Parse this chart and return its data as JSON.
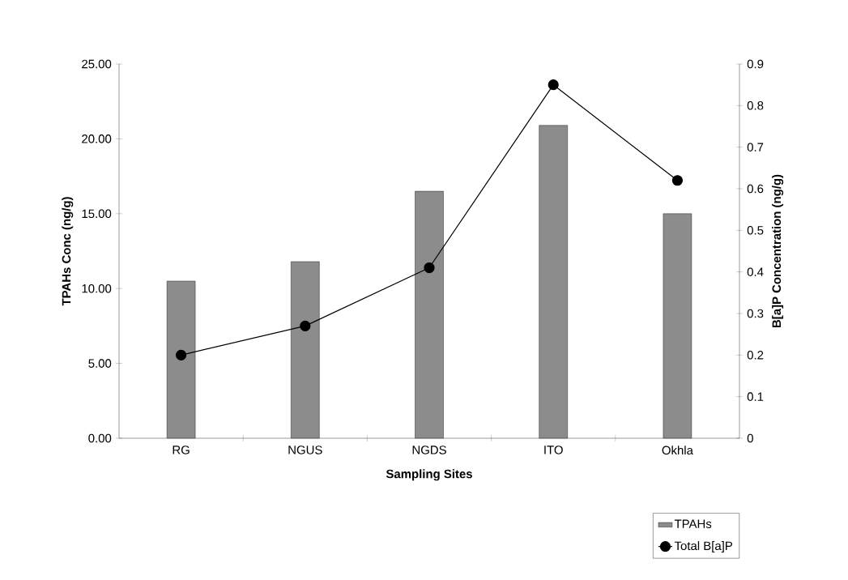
{
  "chart_data": {
    "type": "bar",
    "xlabel": "Sampling Sites",
    "ylabel": "TPAHs Conc (ng/g)",
    "y2label": "B[a]P Concentration (ng/g)",
    "categories": [
      "RG",
      "NGUS",
      "NGDS",
      "ITO",
      "Okhla"
    ],
    "series": [
      {
        "name": "TPAHs",
        "color": "#8c8c8c",
        "values": [
          10.5,
          11.8,
          16.5,
          20.9,
          15.0
        ]
      },
      {
        "name": "Total B[a]P",
        "type": "line",
        "axis": "y2",
        "color": "#000000",
        "values": [
          0.2,
          0.27,
          0.41,
          0.85,
          0.62
        ]
      }
    ],
    "ylim": [
      0,
      25
    ],
    "yticks": [
      {
        "value": 0,
        "label": "0.00"
      },
      {
        "value": 5,
        "label": "5.00"
      },
      {
        "value": 10,
        "label": "10.00"
      },
      {
        "value": 15,
        "label": "15.00"
      },
      {
        "value": 20,
        "label": "20.00"
      },
      {
        "value": 25,
        "label": "25.00"
      }
    ],
    "y2lim": [
      0,
      0.9
    ],
    "y2ticks": [
      0,
      0.1,
      0.2,
      0.3,
      0.4,
      0.5,
      0.6,
      0.7,
      0.8,
      0.9
    ],
    "legend": "bottom right",
    "grid": false,
    "marker": "circle",
    "line_style": "solid"
  }
}
